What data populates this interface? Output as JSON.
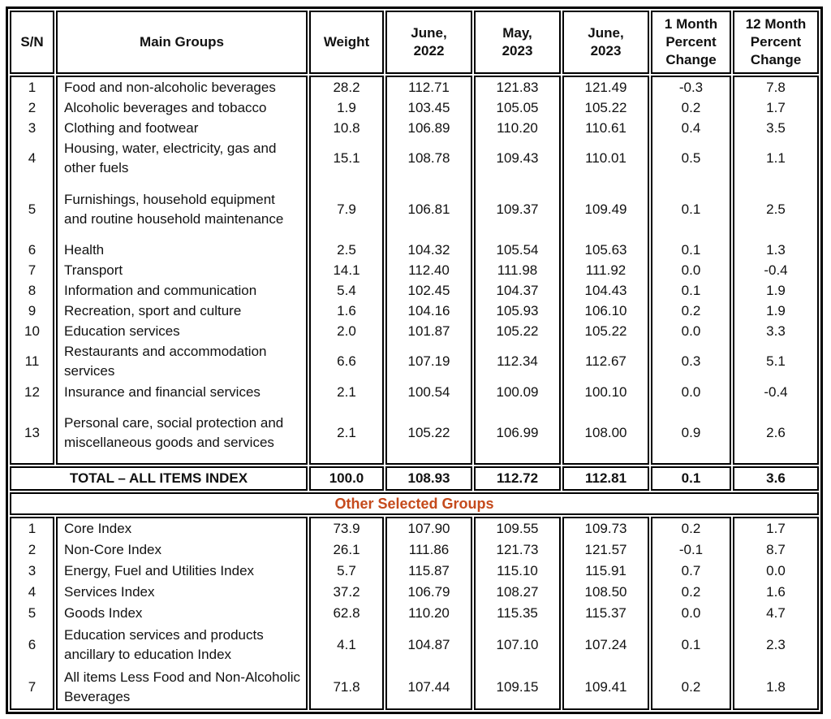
{
  "table": {
    "accent_color": "#C54A1C",
    "columns": [
      "S/N",
      "Main Groups",
      "Weight",
      "June,\n2022",
      "May,\n2023",
      "June,\n2023",
      "1 Month\nPercent\nChange",
      "12 Month\nPercent\nChange"
    ],
    "main_rows": [
      {
        "sn": "1",
        "group": "Food and non-alcoholic beverages",
        "weight": "28.2",
        "jun2022": "112.71",
        "may2023": "121.83",
        "jun2023": "121.49",
        "m1": "-0.3",
        "m12": "7.8"
      },
      {
        "sn": "2",
        "group": "Alcoholic beverages and tobacco",
        "weight": "1.9",
        "jun2022": "103.45",
        "may2023": "105.05",
        "jun2023": "105.22",
        "m1": "0.2",
        "m12": "1.7"
      },
      {
        "sn": "3",
        "group": "Clothing and footwear",
        "weight": "10.8",
        "jun2022": "106.89",
        "may2023": "110.20",
        "jun2023": "110.61",
        "m1": "0.4",
        "m12": "3.5"
      },
      {
        "sn": "4",
        "group": "Housing, water, electricity, gas and other fuels",
        "weight": "15.1",
        "jun2022": "108.78",
        "may2023": "109.43",
        "jun2023": "110.01",
        "m1": "0.5",
        "m12": "1.1"
      },
      {
        "sn": "5",
        "group": "Furnishings, household equipment and routine household maintenance",
        "weight": "7.9",
        "jun2022": "106.81",
        "may2023": "109.37",
        "jun2023": "109.49",
        "m1": "0.1",
        "m12": "2.5"
      },
      {
        "sn": "6",
        "group": "Health",
        "weight": "2.5",
        "jun2022": "104.32",
        "may2023": "105.54",
        "jun2023": "105.63",
        "m1": "0.1",
        "m12": "1.3"
      },
      {
        "sn": "7",
        "group": "Transport",
        "weight": "14.1",
        "jun2022": "112.40",
        "may2023": "111.98",
        "jun2023": "111.92",
        "m1": "0.0",
        "m12": "-0.4"
      },
      {
        "sn": "8",
        "group": "Information and communication",
        "weight": "5.4",
        "jun2022": "102.45",
        "may2023": "104.37",
        "jun2023": "104.43",
        "m1": "0.1",
        "m12": "1.9"
      },
      {
        "sn": "9",
        "group": "Recreation, sport and culture",
        "weight": "1.6",
        "jun2022": "104.16",
        "may2023": "105.93",
        "jun2023": "106.10",
        "m1": "0.2",
        "m12": "1.9"
      },
      {
        "sn": "10",
        "group": "Education services",
        "weight": "2.0",
        "jun2022": "101.87",
        "may2023": "105.22",
        "jun2023": "105.22",
        "m1": "0.0",
        "m12": "3.3"
      },
      {
        "sn": "11",
        "group": "Restaurants and accommodation services",
        "weight": "6.6",
        "jun2022": "107.19",
        "may2023": "112.34",
        "jun2023": "112.67",
        "m1": "0.3",
        "m12": "5.1"
      },
      {
        "sn": "12",
        "group": "Insurance and financial services",
        "weight": "2.1",
        "jun2022": "100.54",
        "may2023": "100.09",
        "jun2023": "100.10",
        "m1": "0.0",
        "m12": "-0.4"
      },
      {
        "sn": "13",
        "group": "Personal care, social protection and miscellaneous goods and services",
        "weight": "2.1",
        "jun2022": "105.22",
        "may2023": "106.99",
        "jun2023": "108.00",
        "m1": "0.9",
        "m12": "2.6"
      }
    ],
    "total_row": {
      "label": "TOTAL – ALL ITEMS INDEX",
      "weight": "100.0",
      "jun2022": "108.93",
      "may2023": "112.72",
      "jun2023": "112.81",
      "m1": "0.1",
      "m12": "3.6"
    },
    "section_header": "Other Selected Groups",
    "other_rows": [
      {
        "sn": "1",
        "group": "Core Index",
        "weight": "73.9",
        "jun2022": "107.90",
        "may2023": "109.55",
        "jun2023": "109.73",
        "m1": "0.2",
        "m12": "1.7"
      },
      {
        "sn": "2",
        "group": "Non-Core Index",
        "weight": "26.1",
        "jun2022": "111.86",
        "may2023": "121.73",
        "jun2023": "121.57",
        "m1": "-0.1",
        "m12": "8.7"
      },
      {
        "sn": "3",
        "group": "Energy, Fuel and Utilities Index",
        "weight": "5.7",
        "jun2022": "115.87",
        "may2023": "115.10",
        "jun2023": "115.91",
        "m1": "0.7",
        "m12": "0.0"
      },
      {
        "sn": "4",
        "group": "Services Index",
        "weight": "37.2",
        "jun2022": "106.79",
        "may2023": "108.27",
        "jun2023": "108.50",
        "m1": "0.2",
        "m12": "1.6"
      },
      {
        "sn": "5",
        "group": "Goods Index",
        "weight": "62.8",
        "jun2022": "110.20",
        "may2023": "115.35",
        "jun2023": "115.37",
        "m1": "0.0",
        "m12": "4.7"
      },
      {
        "sn": "6",
        "group": "Education services and products ancillary to education Index",
        "weight": "4.1",
        "jun2022": "104.87",
        "may2023": "107.10",
        "jun2023": "107.24",
        "m1": "0.1",
        "m12": "2.3"
      },
      {
        "sn": "7",
        "group": "All items Less Food and Non-Alcoholic Beverages",
        "weight": "71.8",
        "jun2022": "107.44",
        "may2023": "109.15",
        "jun2023": "109.41",
        "m1": "0.2",
        "m12": "1.8"
      }
    ]
  }
}
